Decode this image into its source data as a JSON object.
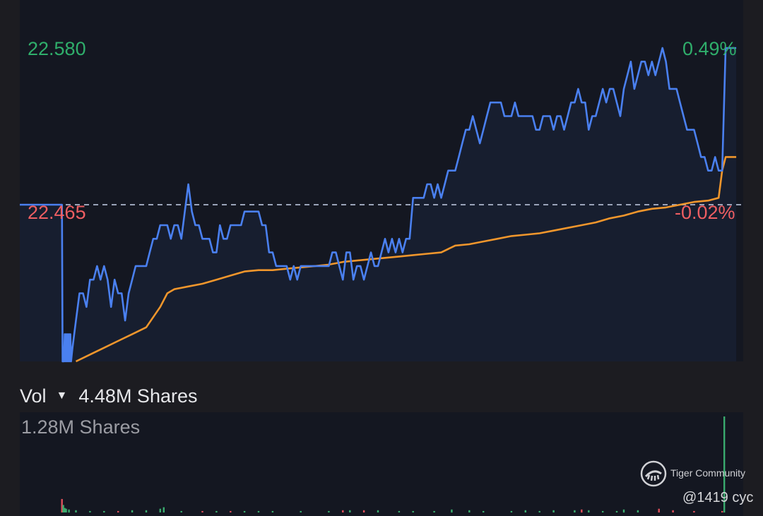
{
  "price_labels": {
    "max_price": "22.580",
    "max_pct": "0.49%",
    "prev_close": "22.465",
    "prev_pct": "-0.02%"
  },
  "volume": {
    "label": "Vol",
    "total": "4.48M Shares",
    "max": "1.28M Shares"
  },
  "watermark": {
    "brand": "Tiger Community",
    "user": "@1419 cyc",
    "icon": "tiger-logo-icon"
  },
  "colors": {
    "price_line": "#4a80f0",
    "avg_line": "#f0962c",
    "up": "#3aab6e",
    "down": "#e0505a",
    "up_text": "#2fae6b",
    "down_text": "#ee5e62",
    "prev_close_line": "#9aa3b8",
    "panel": "#141721"
  },
  "chart_data": {
    "type": "line",
    "ylim": [
      22.35,
      22.58
    ],
    "prev_close": 22.465,
    "series": [
      {
        "role": "price",
        "points": [
          [
            0,
            22.465
          ],
          [
            60,
            22.465
          ],
          [
            61,
            22.35
          ],
          [
            63,
            22.35
          ],
          [
            64,
            22.37
          ],
          [
            65,
            22.35
          ],
          [
            66,
            22.37
          ],
          [
            67,
            22.35
          ],
          [
            68,
            22.37
          ],
          [
            69,
            22.35
          ],
          [
            70,
            22.37
          ],
          [
            71,
            22.35
          ],
          [
            72,
            22.37
          ],
          [
            73,
            22.35
          ],
          [
            75,
            22.36
          ],
          [
            80,
            22.38
          ],
          [
            85,
            22.4
          ],
          [
            90,
            22.4
          ],
          [
            95,
            22.39
          ],
          [
            100,
            22.41
          ],
          [
            105,
            22.41
          ],
          [
            110,
            22.42
          ],
          [
            115,
            22.41
          ],
          [
            120,
            22.42
          ],
          [
            125,
            22.41
          ],
          [
            130,
            22.39
          ],
          [
            135,
            22.41
          ],
          [
            140,
            22.4
          ],
          [
            145,
            22.4
          ],
          [
            150,
            22.38
          ],
          [
            155,
            22.4
          ],
          [
            160,
            22.41
          ],
          [
            165,
            22.42
          ],
          [
            170,
            22.42
          ],
          [
            175,
            22.42
          ],
          [
            180,
            22.42
          ],
          [
            185,
            22.43
          ],
          [
            190,
            22.44
          ],
          [
            195,
            22.44
          ],
          [
            200,
            22.45
          ],
          [
            205,
            22.45
          ],
          [
            210,
            22.45
          ],
          [
            215,
            22.44
          ],
          [
            220,
            22.45
          ],
          [
            225,
            22.45
          ],
          [
            230,
            22.44
          ],
          [
            235,
            22.46
          ],
          [
            240,
            22.48
          ],
          [
            245,
            22.46
          ],
          [
            250,
            22.45
          ],
          [
            255,
            22.45
          ],
          [
            260,
            22.44
          ],
          [
            265,
            22.44
          ],
          [
            270,
            22.44
          ],
          [
            275,
            22.43
          ],
          [
            280,
            22.43
          ],
          [
            285,
            22.45
          ],
          [
            290,
            22.44
          ],
          [
            295,
            22.44
          ],
          [
            300,
            22.45
          ],
          [
            305,
            22.45
          ],
          [
            310,
            22.45
          ],
          [
            315,
            22.45
          ],
          [
            320,
            22.46
          ],
          [
            325,
            22.46
          ],
          [
            330,
            22.46
          ],
          [
            335,
            22.46
          ],
          [
            340,
            22.46
          ],
          [
            345,
            22.45
          ],
          [
            350,
            22.45
          ],
          [
            355,
            22.43
          ],
          [
            360,
            22.43
          ],
          [
            365,
            22.42
          ],
          [
            370,
            22.42
          ],
          [
            375,
            22.42
          ],
          [
            380,
            22.42
          ],
          [
            385,
            22.41
          ],
          [
            390,
            22.42
          ],
          [
            395,
            22.41
          ],
          [
            400,
            22.42
          ],
          [
            405,
            22.42
          ],
          [
            410,
            22.42
          ],
          [
            415,
            22.42
          ],
          [
            420,
            22.42
          ],
          [
            425,
            22.42
          ],
          [
            430,
            22.42
          ],
          [
            435,
            22.42
          ],
          [
            440,
            22.42
          ],
          [
            445,
            22.43
          ],
          [
            450,
            22.43
          ],
          [
            455,
            22.42
          ],
          [
            460,
            22.41
          ],
          [
            465,
            22.43
          ],
          [
            470,
            22.43
          ],
          [
            475,
            22.41
          ],
          [
            480,
            22.42
          ],
          [
            485,
            22.42
          ],
          [
            490,
            22.41
          ],
          [
            495,
            22.42
          ],
          [
            500,
            22.43
          ],
          [
            505,
            22.42
          ],
          [
            510,
            22.42
          ],
          [
            515,
            22.43
          ],
          [
            520,
            22.44
          ],
          [
            525,
            22.43
          ],
          [
            530,
            22.44
          ],
          [
            535,
            22.43
          ],
          [
            540,
            22.44
          ],
          [
            545,
            22.43
          ],
          [
            550,
            22.44
          ],
          [
            555,
            22.44
          ],
          [
            560,
            22.47
          ],
          [
            565,
            22.47
          ],
          [
            570,
            22.47
          ],
          [
            575,
            22.47
          ],
          [
            580,
            22.48
          ],
          [
            585,
            22.48
          ],
          [
            590,
            22.47
          ],
          [
            595,
            22.48
          ],
          [
            600,
            22.47
          ],
          [
            605,
            22.48
          ],
          [
            610,
            22.49
          ],
          [
            615,
            22.49
          ],
          [
            620,
            22.49
          ],
          [
            625,
            22.5
          ],
          [
            630,
            22.51
          ],
          [
            635,
            22.52
          ],
          [
            640,
            22.52
          ],
          [
            645,
            22.53
          ],
          [
            650,
            22.52
          ],
          [
            655,
            22.51
          ],
          [
            660,
            22.52
          ],
          [
            665,
            22.53
          ],
          [
            670,
            22.54
          ],
          [
            675,
            22.54
          ],
          [
            680,
            22.54
          ],
          [
            685,
            22.54
          ],
          [
            690,
            22.53
          ],
          [
            695,
            22.53
          ],
          [
            700,
            22.53
          ],
          [
            705,
            22.54
          ],
          [
            710,
            22.53
          ],
          [
            715,
            22.53
          ],
          [
            720,
            22.53
          ],
          [
            725,
            22.53
          ],
          [
            730,
            22.53
          ],
          [
            735,
            22.52
          ],
          [
            740,
            22.52
          ],
          [
            745,
            22.53
          ],
          [
            750,
            22.53
          ],
          [
            755,
            22.53
          ],
          [
            760,
            22.52
          ],
          [
            765,
            22.53
          ],
          [
            770,
            22.53
          ],
          [
            775,
            22.52
          ],
          [
            780,
            22.53
          ],
          [
            785,
            22.54
          ],
          [
            790,
            22.54
          ],
          [
            795,
            22.55
          ],
          [
            800,
            22.54
          ],
          [
            805,
            22.54
          ],
          [
            810,
            22.52
          ],
          [
            815,
            22.53
          ],
          [
            820,
            22.53
          ],
          [
            825,
            22.54
          ],
          [
            830,
            22.55
          ],
          [
            835,
            22.54
          ],
          [
            840,
            22.55
          ],
          [
            845,
            22.55
          ],
          [
            850,
            22.54
          ],
          [
            855,
            22.53
          ],
          [
            860,
            22.55
          ],
          [
            865,
            22.56
          ],
          [
            870,
            22.57
          ],
          [
            875,
            22.55
          ],
          [
            880,
            22.56
          ],
          [
            885,
            22.57
          ],
          [
            890,
            22.57
          ],
          [
            895,
            22.56
          ],
          [
            900,
            22.57
          ],
          [
            905,
            22.56
          ],
          [
            910,
            22.57
          ],
          [
            915,
            22.58
          ],
          [
            920,
            22.57
          ],
          [
            925,
            22.55
          ],
          [
            930,
            22.55
          ],
          [
            935,
            22.55
          ],
          [
            940,
            22.54
          ],
          [
            945,
            22.53
          ],
          [
            950,
            22.52
          ],
          [
            955,
            22.52
          ],
          [
            960,
            22.52
          ],
          [
            965,
            22.51
          ],
          [
            970,
            22.5
          ],
          [
            975,
            22.5
          ],
          [
            980,
            22.49
          ],
          [
            985,
            22.49
          ],
          [
            990,
            22.5
          ],
          [
            995,
            22.49
          ],
          [
            1000,
            22.49
          ],
          [
            1005,
            22.58
          ],
          [
            1010,
            22.58
          ],
          [
            1020,
            22.58
          ]
        ]
      },
      {
        "role": "average",
        "points": [
          [
            80,
            22.35
          ],
          [
            100,
            22.355
          ],
          [
            120,
            22.36
          ],
          [
            140,
            22.365
          ],
          [
            160,
            22.37
          ],
          [
            180,
            22.375
          ],
          [
            200,
            22.39
          ],
          [
            210,
            22.4
          ],
          [
            220,
            22.403
          ],
          [
            240,
            22.405
          ],
          [
            260,
            22.407
          ],
          [
            280,
            22.41
          ],
          [
            300,
            22.413
          ],
          [
            320,
            22.416
          ],
          [
            340,
            22.417
          ],
          [
            360,
            22.417
          ],
          [
            380,
            22.418
          ],
          [
            400,
            22.419
          ],
          [
            420,
            22.42
          ],
          [
            440,
            22.421
          ],
          [
            460,
            22.423
          ],
          [
            480,
            22.424
          ],
          [
            500,
            22.425
          ],
          [
            520,
            22.426
          ],
          [
            540,
            22.427
          ],
          [
            560,
            22.428
          ],
          [
            580,
            22.429
          ],
          [
            600,
            22.43
          ],
          [
            620,
            22.435
          ],
          [
            640,
            22.436
          ],
          [
            660,
            22.438
          ],
          [
            680,
            22.44
          ],
          [
            700,
            22.442
          ],
          [
            720,
            22.443
          ],
          [
            740,
            22.444
          ],
          [
            760,
            22.446
          ],
          [
            780,
            22.448
          ],
          [
            800,
            22.45
          ],
          [
            820,
            22.452
          ],
          [
            840,
            22.455
          ],
          [
            860,
            22.457
          ],
          [
            880,
            22.46
          ],
          [
            900,
            22.462
          ],
          [
            920,
            22.463
          ],
          [
            940,
            22.465
          ],
          [
            960,
            22.467
          ],
          [
            980,
            22.468
          ],
          [
            995,
            22.47
          ],
          [
            1000,
            22.49
          ],
          [
            1005,
            22.5
          ],
          [
            1020,
            22.5
          ]
        ]
      }
    ],
    "volume": {
      "ylim": [
        0,
        1.28
      ],
      "bars": [
        [
          60,
          0.18,
          "down"
        ],
        [
          62,
          0.1,
          "up"
        ],
        [
          64,
          0.06,
          "up"
        ],
        [
          66,
          0.05,
          "up"
        ],
        [
          70,
          0.04,
          "up"
        ],
        [
          80,
          0.03,
          "up"
        ],
        [
          100,
          0.02,
          "up"
        ],
        [
          120,
          0.02,
          "up"
        ],
        [
          140,
          0.02,
          "down"
        ],
        [
          160,
          0.03,
          "up"
        ],
        [
          180,
          0.03,
          "up"
        ],
        [
          200,
          0.05,
          "up"
        ],
        [
          205,
          0.07,
          "up"
        ],
        [
          230,
          0.02,
          "up"
        ],
        [
          260,
          0.02,
          "down"
        ],
        [
          280,
          0.02,
          "up"
        ],
        [
          300,
          0.02,
          "down"
        ],
        [
          320,
          0.02,
          "up"
        ],
        [
          340,
          0.02,
          "up"
        ],
        [
          360,
          0.02,
          "up"
        ],
        [
          400,
          0.02,
          "up"
        ],
        [
          440,
          0.02,
          "up"
        ],
        [
          460,
          0.03,
          "down"
        ],
        [
          470,
          0.03,
          "up"
        ],
        [
          490,
          0.03,
          "down"
        ],
        [
          510,
          0.03,
          "up"
        ],
        [
          540,
          0.02,
          "up"
        ],
        [
          560,
          0.02,
          "up"
        ],
        [
          590,
          0.02,
          "up"
        ],
        [
          615,
          0.04,
          "up"
        ],
        [
          640,
          0.03,
          "up"
        ],
        [
          660,
          0.02,
          "up"
        ],
        [
          700,
          0.02,
          "up"
        ],
        [
          720,
          0.03,
          "up"
        ],
        [
          740,
          0.02,
          "up"
        ],
        [
          760,
          0.03,
          "up"
        ],
        [
          790,
          0.03,
          "up"
        ],
        [
          800,
          0.04,
          "down"
        ],
        [
          810,
          0.03,
          "up"
        ],
        [
          830,
          0.02,
          "up"
        ],
        [
          850,
          0.02,
          "up"
        ],
        [
          860,
          0.04,
          "up"
        ],
        [
          880,
          0.03,
          "up"
        ],
        [
          910,
          0.05,
          "down"
        ],
        [
          930,
          0.03,
          "down"
        ],
        [
          960,
          0.02,
          "down"
        ],
        [
          1000,
          0.02,
          "down"
        ],
        [
          1003,
          1.28,
          "up"
        ]
      ]
    }
  }
}
